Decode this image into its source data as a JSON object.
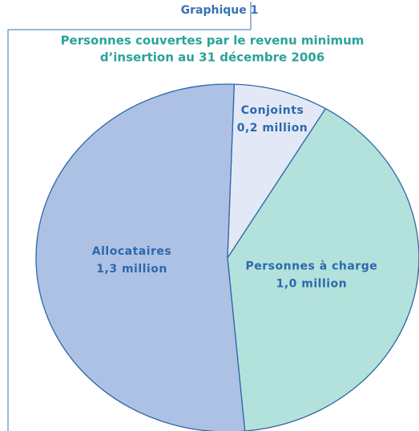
{
  "chart_data": {
    "type": "pie",
    "title": "Graphique 1",
    "subtitle": [
      "Personnes couvertes par le revenu minimum",
      "d’insertion au 31 décembre 2006"
    ],
    "categories": [
      "Conjoints",
      "Personnes à charge",
      "Allocataires"
    ],
    "values": [
      0.2,
      1.0,
      1.3
    ],
    "value_labels": [
      "0,2 million",
      "1,0 million",
      "1,3 million"
    ],
    "colors": [
      "#e3e8f6",
      "#b3e1dc",
      "#adc1e5"
    ]
  }
}
